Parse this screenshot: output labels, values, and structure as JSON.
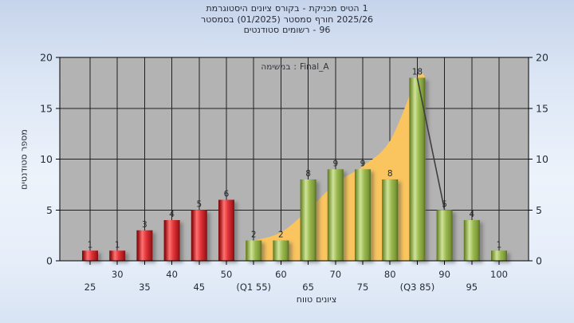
{
  "title": {
    "lines": [
      [
        "היסטוגרמת",
        "ציונים",
        "בקורס",
        "-",
        "מכניקת",
        "הטיס",
        "1"
      ],
      [
        "בסמסטר",
        "(01/2025)",
        "סמסטר",
        "חורף",
        "2025/26"
      ],
      [
        "סטודנטים",
        "רשומים",
        "-",
        "96"
      ]
    ]
  },
  "legend": {
    "tokens": [
      "במשימה",
      ":",
      "Final_A"
    ]
  },
  "axes": {
    "x_title_tokens": [
      "טווח",
      "ציונים"
    ],
    "y_title": "מספר סטודנטים"
  },
  "colors": {
    "page_bg_top": "#c6d4eb",
    "plot_bg": "#b3b3b3",
    "grid": "#1f1f1f",
    "border": "#000000",
    "bar_red": "#d8262c",
    "bar_green": "#8fae44",
    "area_yellow": "#fac55e",
    "overlay_line": "#3f3f3f",
    "text": "#262c36"
  },
  "chart_data": {
    "type": "bar",
    "title": "היסטוגרמת ציונים בקורס - מכניקת הטיס 1",
    "subtitle": "בסמסטר (01/2025) סמסטר חורף 2025/26",
    "note": "סטודנטים רשומים - 96",
    "xlabel": "טווח ציונים",
    "ylabel": "מספר סטודנטים",
    "legend": "במשימה : Final_A",
    "categories": [
      25,
      30,
      35,
      40,
      45,
      50,
      55,
      60,
      65,
      70,
      75,
      80,
      85,
      90,
      95,
      100
    ],
    "values": [
      1,
      1,
      3,
      4,
      5,
      6,
      2,
      2,
      8,
      9,
      9,
      8,
      18,
      5,
      4,
      1
    ],
    "bar_groups": [
      "red",
      "red",
      "red",
      "red",
      "red",
      "red",
      "green",
      "green",
      "green",
      "green",
      "green",
      "green",
      "green",
      "green",
      "green",
      "green"
    ],
    "x_tick_labels": [
      "25",
      "30",
      "35",
      "40",
      "45",
      "50",
      "(Q1 55)",
      "60",
      "65",
      "70",
      "75",
      "80",
      "(Q3 85)",
      "90",
      "95",
      "100"
    ],
    "yticks": [
      0,
      5,
      10,
      15,
      20
    ],
    "ylim": [
      0,
      20
    ],
    "grid": true,
    "legend_position": "top-center-inside",
    "area_overlay": {
      "comment": "smooth yellow fitted-area under curve",
      "x": [
        53.5,
        55,
        60,
        65,
        70,
        75,
        80,
        85,
        86.5
      ],
      "y": [
        2,
        2,
        2.8,
        5,
        7.6,
        9.3,
        11.8,
        18,
        18
      ]
    },
    "line_segment": {
      "x": [
        85,
        90
      ],
      "y": [
        18,
        5
      ]
    }
  }
}
